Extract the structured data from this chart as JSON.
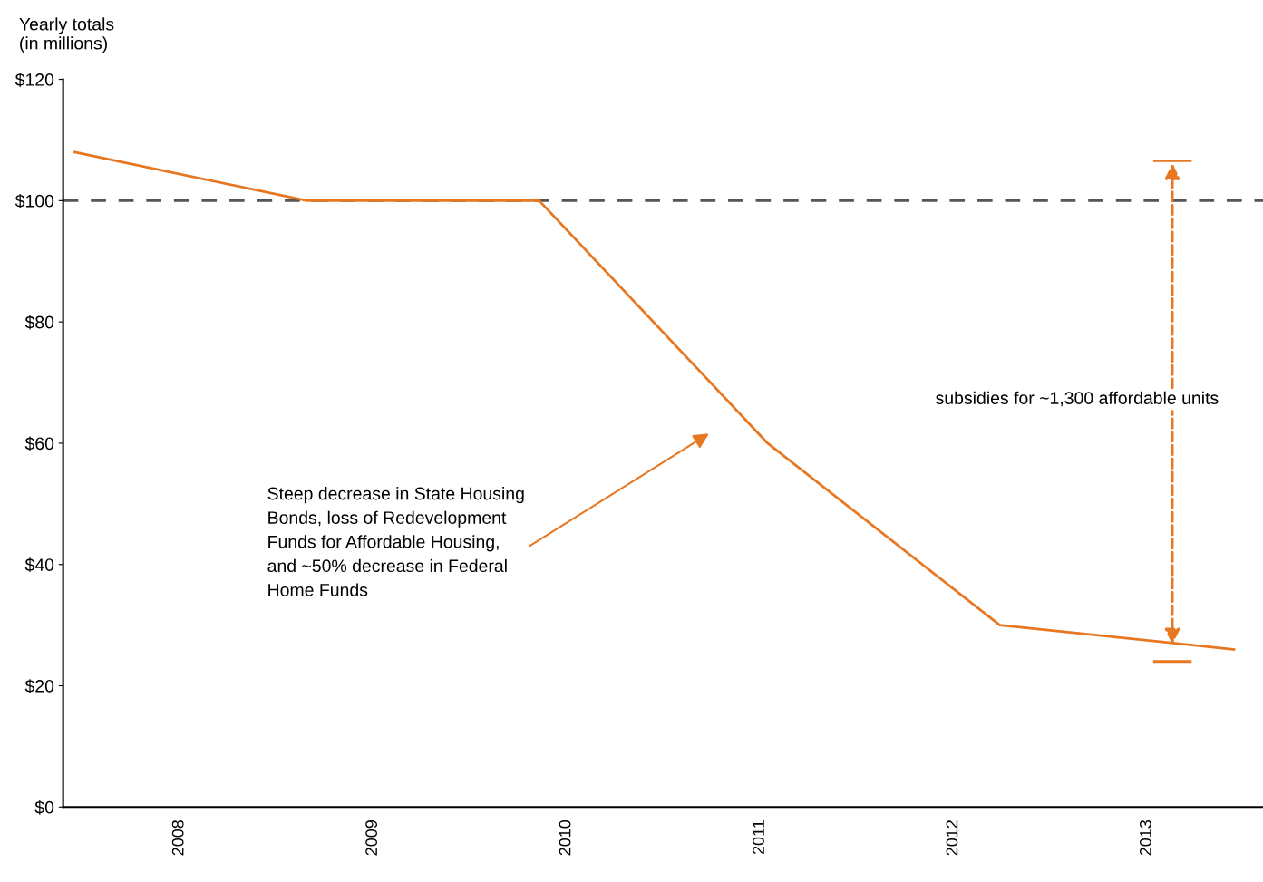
{
  "chart_data": {
    "type": "line",
    "ylabel": "Yearly totals\n(in millions)",
    "x": [
      2007.46,
      2008.66,
      2009.86,
      2011.04,
      2012.24,
      2013.45
    ],
    "series": [
      {
        "color": "#e87722",
        "values": [
          108,
          100,
          100,
          60,
          30,
          26
        ]
      }
    ],
    "xlim": [
      2007.4,
      2013.6
    ],
    "xticks": [
      {
        "value": 2008,
        "label": "2008"
      },
      {
        "value": 2009,
        "label": "2009"
      },
      {
        "value": 2010,
        "label": "2010"
      },
      {
        "value": 2011,
        "label": "2011"
      },
      {
        "value": 2012,
        "label": "2012"
      },
      {
        "value": 2013,
        "label": "2013"
      }
    ],
    "ylim": [
      0,
      120
    ],
    "yticks": [
      {
        "value": 0,
        "label": "$0"
      },
      {
        "value": 20,
        "label": "$20"
      },
      {
        "value": 40,
        "label": "$40"
      },
      {
        "value": 60,
        "label": "$60"
      },
      {
        "value": 80,
        "label": "$80"
      },
      {
        "value": 100,
        "label": "$100"
      },
      {
        "value": 120,
        "label": "$120"
      }
    ],
    "ref_lines": [
      {
        "axis": "y",
        "value": 100,
        "color": "#555555",
        "line_style": "dashed"
      }
    ],
    "annotations": [
      "Steep decrease in State Housing\nBonds, loss of Redevelopment\nFunds for Affordable Housing,\nand ~50% decrease in Federal\nHome Funds",
      "subsidies for ~1,300 affordable units"
    ],
    "grid": false,
    "legend": false,
    "marker": "none",
    "line_style": "solid"
  }
}
